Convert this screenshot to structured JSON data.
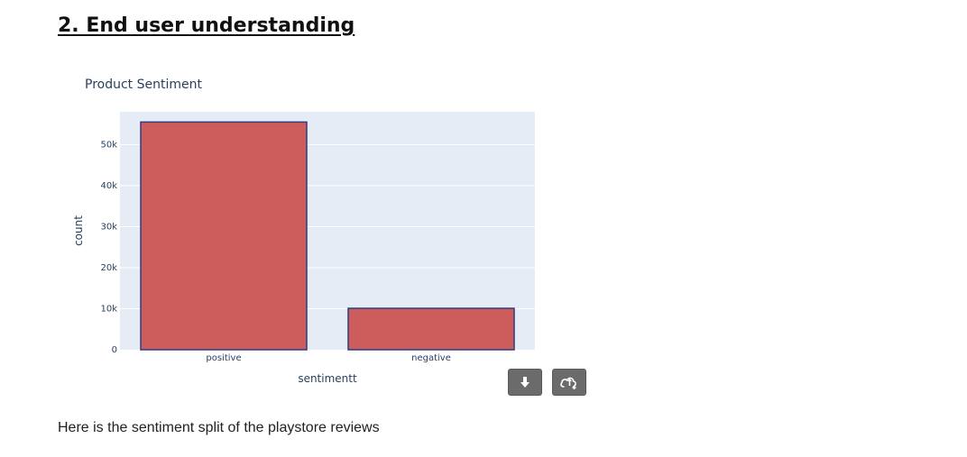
{
  "section": {
    "heading": "2. End user understanding"
  },
  "chart_data": {
    "type": "bar",
    "title": "Product Sentiment",
    "xlabel": "sentimentt",
    "ylabel": "count",
    "categories": [
      "positive",
      "negative"
    ],
    "values": [
      55500,
      10100
    ],
    "ylim": [
      0,
      58000
    ],
    "yticks": [
      0,
      10000,
      20000,
      30000,
      40000,
      50000
    ],
    "ytick_labels": [
      "0",
      "10k",
      "20k",
      "30k",
      "40k",
      "50k"
    ],
    "grid": true,
    "legend": "none",
    "bar_color": "#cd5c5c",
    "bar_edge_color": "#2a3f7f",
    "plot_background": "#e5ecf6"
  },
  "toolbar": {
    "download_icon": "download-arrow-icon",
    "share_icon": "cloud-upload-icon",
    "button_color": "#6b6b6b"
  },
  "caption": {
    "text": "Here is the sentiment split of the playstore reviews"
  }
}
